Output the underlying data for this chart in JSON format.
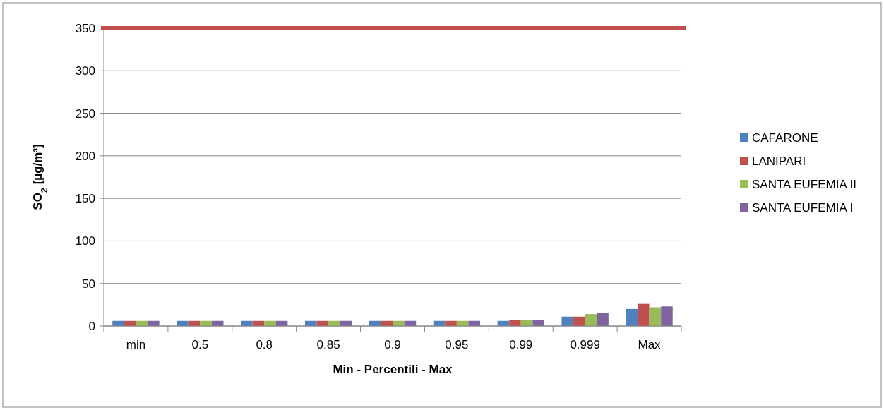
{
  "chart_data": {
    "type": "bar",
    "xlabel": "Min - Percentili - Max",
    "ylabel": "SO$_{2}$ [µg/m³]",
    "categories": [
      "min",
      "0.5",
      "0.8",
      "0.85",
      "0.9",
      "0.95",
      "0.99",
      "0.999",
      "Max"
    ],
    "series": [
      {
        "name": "CAFARONE",
        "color": "#4f81bd",
        "values": [
          6,
          6,
          6,
          6,
          6,
          6,
          6,
          11,
          20
        ]
      },
      {
        "name": "LANIPARI",
        "color": "#c0504d",
        "values": [
          6,
          6,
          6,
          6,
          6,
          6,
          7,
          11,
          26
        ]
      },
      {
        "name": "SANTA EUFEMIA II",
        "color": "#9bbb59",
        "values": [
          6,
          6,
          6,
          6,
          6,
          6,
          7,
          14,
          22
        ]
      },
      {
        "name": "SANTA EUFEMIA I",
        "color": "#8064a2",
        "values": [
          6,
          6,
          6,
          6,
          6,
          6,
          7,
          15,
          23
        ]
      }
    ],
    "ylim": [
      0,
      350
    ],
    "yticks": [
      0,
      50,
      100,
      150,
      200,
      250,
      300,
      350
    ],
    "grid": "y",
    "legend": "right",
    "ref_lines": [
      {
        "axis": "y",
        "value": 350,
        "color": "#c0504d"
      }
    ]
  }
}
